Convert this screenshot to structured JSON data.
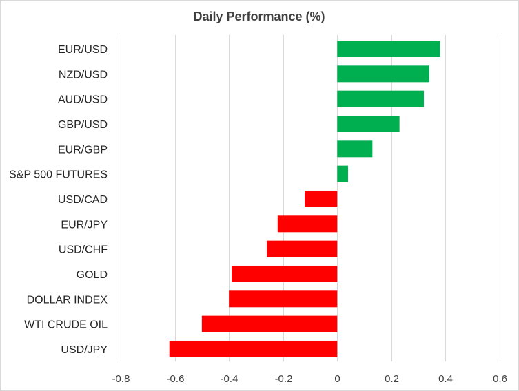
{
  "chart_data": {
    "type": "bar",
    "orientation": "horizontal",
    "title": "Daily Performance  (%)",
    "xlabel": "",
    "ylabel": "",
    "xlim": [
      -0.8,
      0.6
    ],
    "xticks": [
      -0.8,
      -0.6,
      -0.4,
      -0.2,
      0,
      0.2,
      0.4,
      0.6
    ],
    "xtick_labels": [
      "-0.8",
      "-0.6",
      "-0.4",
      "-0.2",
      "0",
      "0.2",
      "0.4",
      "0.6"
    ],
    "grid": "vertical",
    "categories": [
      "EUR/USD",
      "NZD/USD",
      "AUD/USD",
      "GBP/USD",
      "EUR/GBP",
      "S&P 500 FUTURES",
      "USD/CAD",
      "EUR/JPY",
      "USD/CHF",
      "GOLD",
      "DOLLAR INDEX",
      "WTI CRUDE OIL",
      "USD/JPY"
    ],
    "values": [
      0.38,
      0.34,
      0.32,
      0.23,
      0.13,
      0.04,
      -0.12,
      -0.22,
      -0.26,
      -0.39,
      -0.4,
      -0.5,
      -0.62
    ],
    "colors": {
      "positive": "#00b050",
      "negative": "#ff0000"
    }
  }
}
